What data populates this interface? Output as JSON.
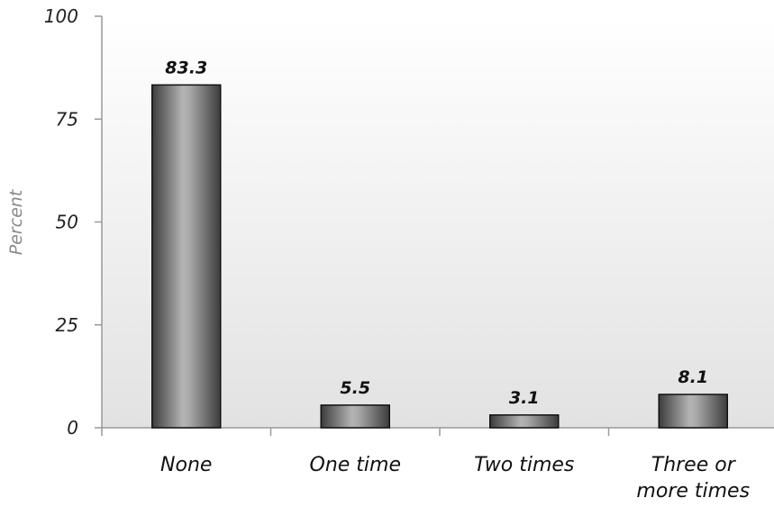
{
  "chart_data": {
    "type": "bar",
    "categories": [
      "None",
      "One time",
      "Two times",
      "Three or more times"
    ],
    "category_lines": [
      [
        "None"
      ],
      [
        "One time"
      ],
      [
        "Two times"
      ],
      [
        "Three or",
        "more times"
      ]
    ],
    "values": [
      83.3,
      5.5,
      3.1,
      8.1
    ],
    "value_labels": [
      "83.3",
      "5.5",
      "3.1",
      "8.1"
    ],
    "title": "",
    "xlabel": "",
    "ylabel": "Percent",
    "ylim": [
      0,
      100
    ],
    "yticks": [
      0,
      25,
      50,
      75,
      100
    ],
    "grid": false,
    "bar_color": "#707070",
    "plot_background": "#ececec"
  }
}
